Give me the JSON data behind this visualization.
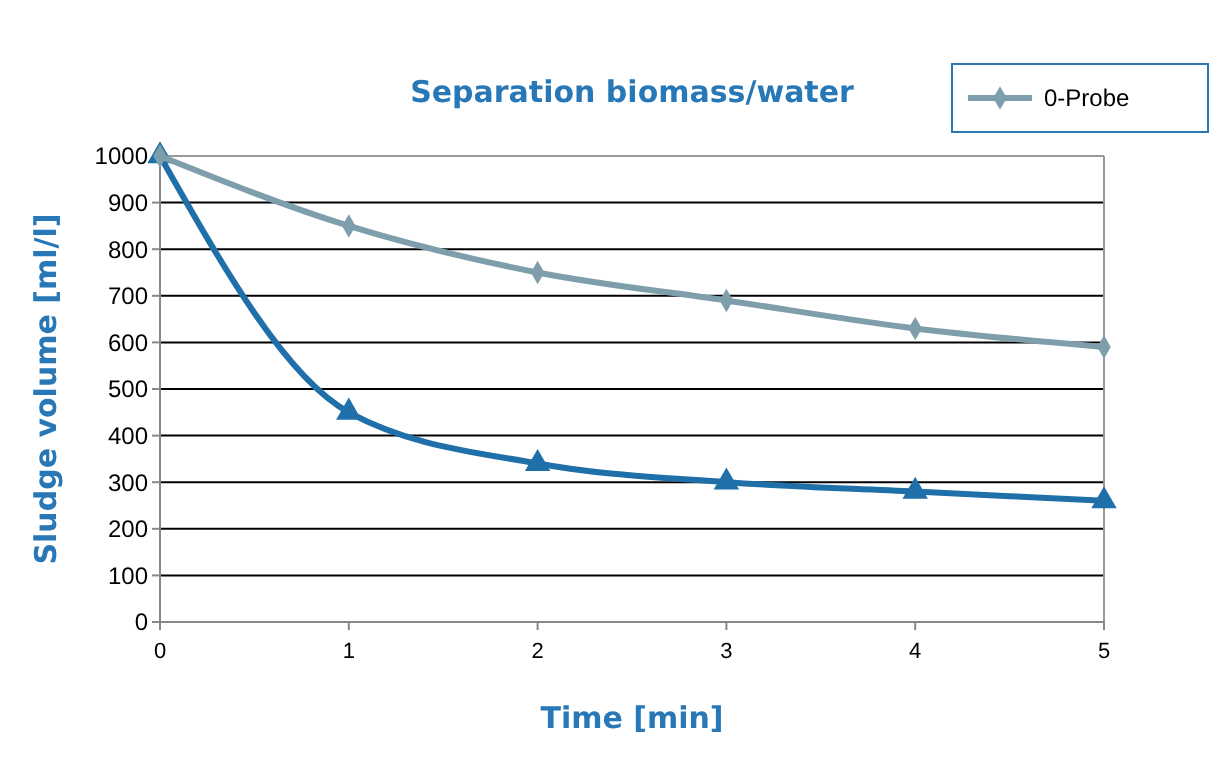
{
  "chart_data": {
    "type": "line",
    "title": "Separation biomass/water",
    "xlabel": "Time [min]",
    "ylabel": "Sludge volume [ml/l]",
    "x": [
      0,
      1,
      2,
      3,
      4,
      5
    ],
    "xlim": [
      0,
      5
    ],
    "xticks": [
      0,
      1,
      2,
      3,
      4,
      5
    ],
    "ylim": [
      0,
      1000
    ],
    "yticks": [
      0,
      100,
      200,
      300,
      400,
      500,
      600,
      700,
      800,
      900,
      1000
    ],
    "grid": "y",
    "legend": "top right",
    "series": [
      {
        "name": "0-Probe",
        "color": "#7f9eab",
        "marker": "diamond",
        "values": [
          1000,
          850,
          750,
          690,
          630,
          590
        ]
      },
      {
        "color": "#1f6fa8",
        "marker": "triangle",
        "values": [
          1000,
          450,
          340,
          300,
          280,
          260
        ]
      }
    ]
  }
}
